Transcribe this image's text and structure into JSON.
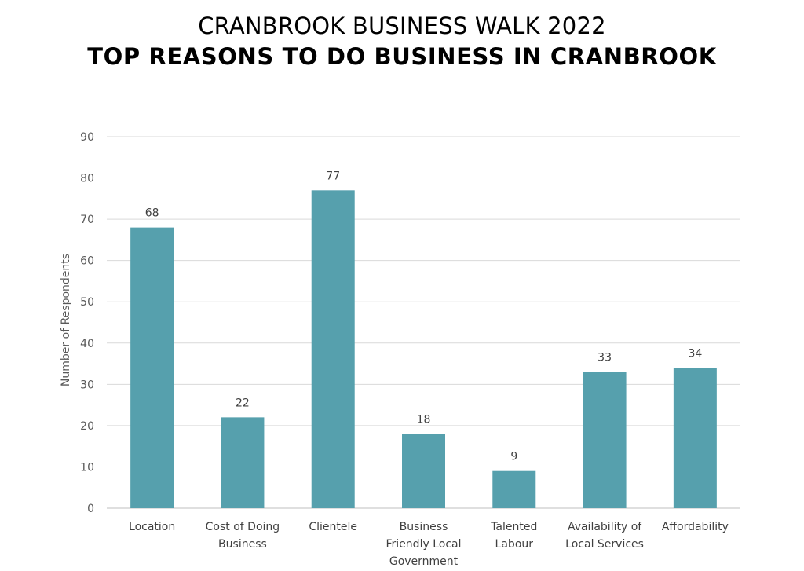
{
  "header": {
    "title": "CRANBROOK BUSINESS WALK 2022",
    "subtitle": "TOP REASONS TO DO BUSINESS IN CRANBROOK"
  },
  "chart_data": {
    "type": "bar",
    "title": "CRANBROOK BUSINESS WALK 2022",
    "subtitle": "TOP REASONS TO DO BUSINESS IN CRANBROOK",
    "ylabel": "Number of Respondents",
    "xlabel": "",
    "ylim": [
      0,
      90
    ],
    "yticks": [
      0,
      10,
      20,
      30,
      40,
      50,
      60,
      70,
      80,
      90
    ],
    "grid": true,
    "bar_color": "#56a0ad",
    "categories": [
      [
        "Location"
      ],
      [
        "Cost of Doing",
        "Business"
      ],
      [
        "Clientele"
      ],
      [
        "Business",
        "Friendly Local",
        "Government"
      ],
      [
        "Talented",
        "Labour"
      ],
      [
        "Availability of",
        "Local Services"
      ],
      [
        "Affordability"
      ]
    ],
    "values": [
      68,
      22,
      77,
      18,
      9,
      33,
      34
    ]
  }
}
